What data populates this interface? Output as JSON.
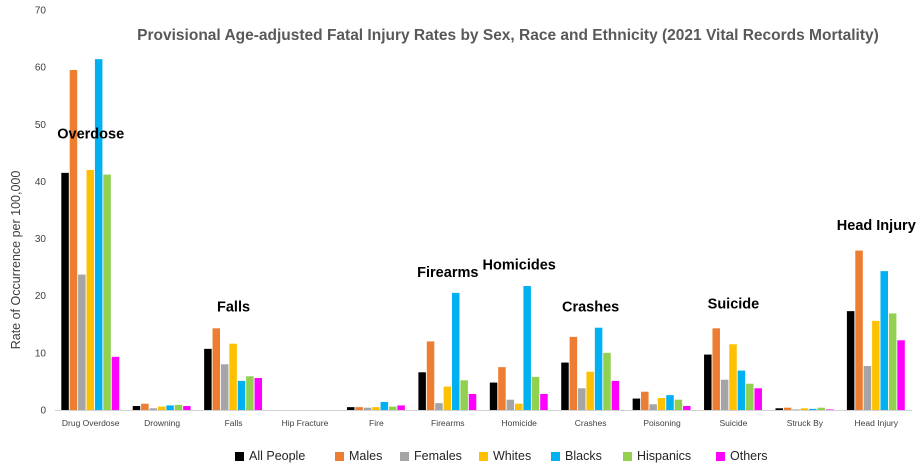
{
  "chart_data": {
    "type": "bar",
    "title": "Provisional Age-adjusted Fatal Injury Rates by Sex, Race and Ethnicity (2021 Vital Records Mortality)",
    "xlabel": "",
    "ylabel": "Rate of Occurrence per 100,000",
    "ylim": [
      0,
      70
    ],
    "yticks": [
      0,
      10,
      20,
      30,
      40,
      50,
      60,
      70
    ],
    "grid": false,
    "legend_position": "bottom",
    "categories": [
      "Drug Overdose",
      "Drowning",
      "Falls",
      "Hip Fracture",
      "Fire",
      "Firearms",
      "Homicide",
      "Crashes",
      "Poisoning",
      "Suicide",
      "Struck By",
      "Head Injury"
    ],
    "series": [
      {
        "name": "All People",
        "color": "#000000",
        "values": [
          41.5,
          0.7,
          10.7,
          0,
          0.5,
          6.6,
          4.8,
          8.3,
          2.0,
          9.7,
          0.3,
          17.3
        ]
      },
      {
        "name": "Males",
        "color": "#ED7D31",
        "values": [
          59.5,
          1.1,
          14.3,
          0,
          0.5,
          12.0,
          7.5,
          12.8,
          3.2,
          14.3,
          0.4,
          27.9
        ]
      },
      {
        "name": "Females",
        "color": "#A5A5A5",
        "values": [
          23.7,
          0.3,
          8.0,
          0,
          0.4,
          1.2,
          1.8,
          3.8,
          1.0,
          5.3,
          0.1,
          7.7
        ]
      },
      {
        "name": "Whites",
        "color": "#FFC000",
        "values": [
          42.0,
          0.6,
          11.6,
          0,
          0.5,
          4.1,
          1.1,
          6.7,
          2.1,
          11.5,
          0.3,
          15.6
        ]
      },
      {
        "name": "Blacks",
        "color": "#00B0F0",
        "values": [
          61.4,
          0.8,
          5.1,
          0,
          1.4,
          20.5,
          21.7,
          14.4,
          2.6,
          6.9,
          0.2,
          24.3
        ]
      },
      {
        "name": "Hispanics",
        "color": "#92D050",
        "values": [
          41.2,
          0.9,
          5.9,
          0,
          0.6,
          5.2,
          5.8,
          10.0,
          1.8,
          4.6,
          0.4,
          16.9
        ]
      },
      {
        "name": "Others",
        "color": "#FF00FF",
        "values": [
          9.3,
          0.7,
          5.6,
          0,
          0.8,
          2.8,
          2.8,
          5.1,
          0.7,
          3.8,
          0.1,
          12.2
        ]
      }
    ],
    "annotations": [
      {
        "text": "Overdose",
        "category": "Drug Overdose",
        "y": 47.5
      },
      {
        "text": "Falls",
        "category": "Falls",
        "y": 17.2
      },
      {
        "text": "Firearms",
        "category": "Firearms",
        "y": 23.3
      },
      {
        "text": "Homicides",
        "category": "Homicide",
        "y": 24.6
      },
      {
        "text": "Crashes",
        "category": "Crashes",
        "y": 17.2
      },
      {
        "text": "Suicide",
        "category": "Suicide",
        "y": 17.8
      },
      {
        "text": "Head Injury",
        "category": "Head Injury",
        "y": 31.5
      }
    ]
  }
}
